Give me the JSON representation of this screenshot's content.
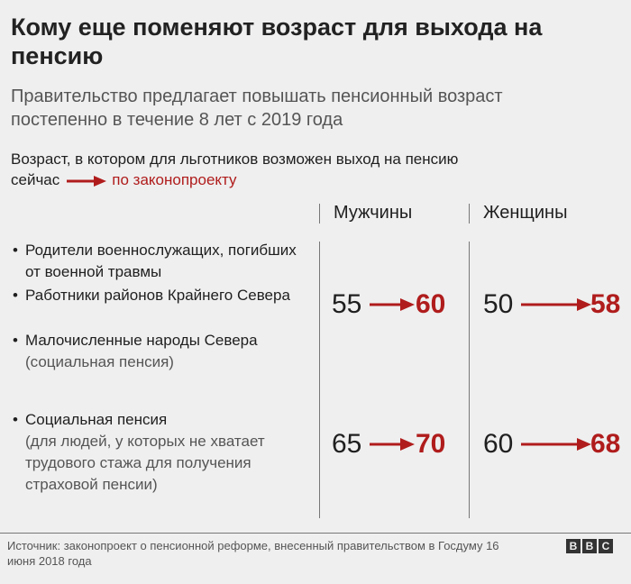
{
  "title": "Кому еще поменяют возраст для выхода на пенсию",
  "subtitle": "Правительство предлагает повышать пенсионный возраст постепенно в течение 8 лет с 2019 года",
  "legend": {
    "line1": "Возраст, в котором для льготников возможен выход на пенсию",
    "now_word": "сейчас",
    "bill_word": "по законопроекту"
  },
  "chart_data": {
    "type": "table",
    "columns": [
      "Мужчины",
      "Женщины"
    ],
    "groups": [
      {
        "items": [
          {
            "title": "Родители военнослужащих, погибших от военной травмы",
            "note": ""
          },
          {
            "title": "Работники районов Крайнего Севера",
            "note": ""
          },
          {
            "title": "Малочисленные народы Севера",
            "note": "(социальная пенсия)"
          }
        ],
        "men": {
          "current": 55,
          "proposed": 60
        },
        "women": {
          "current": 50,
          "proposed": 58
        }
      },
      {
        "items": [
          {
            "title": "Социальная пенсия",
            "note": "(для людей, у которых не хватает трудового стажа для получения страховой пенсии)"
          }
        ],
        "men": {
          "current": 65,
          "proposed": 70
        },
        "women": {
          "current": 60,
          "proposed": 68
        }
      }
    ]
  },
  "source": "Источник: законопроект о пенсионной реформе, внесенный правительством в Госдуму 16 июня 2018 года",
  "logo": [
    "B",
    "B",
    "C"
  ],
  "colors": {
    "accent": "#b01c1c",
    "text": "#1f1f1f",
    "muted": "#555555",
    "background": "#efefef"
  }
}
